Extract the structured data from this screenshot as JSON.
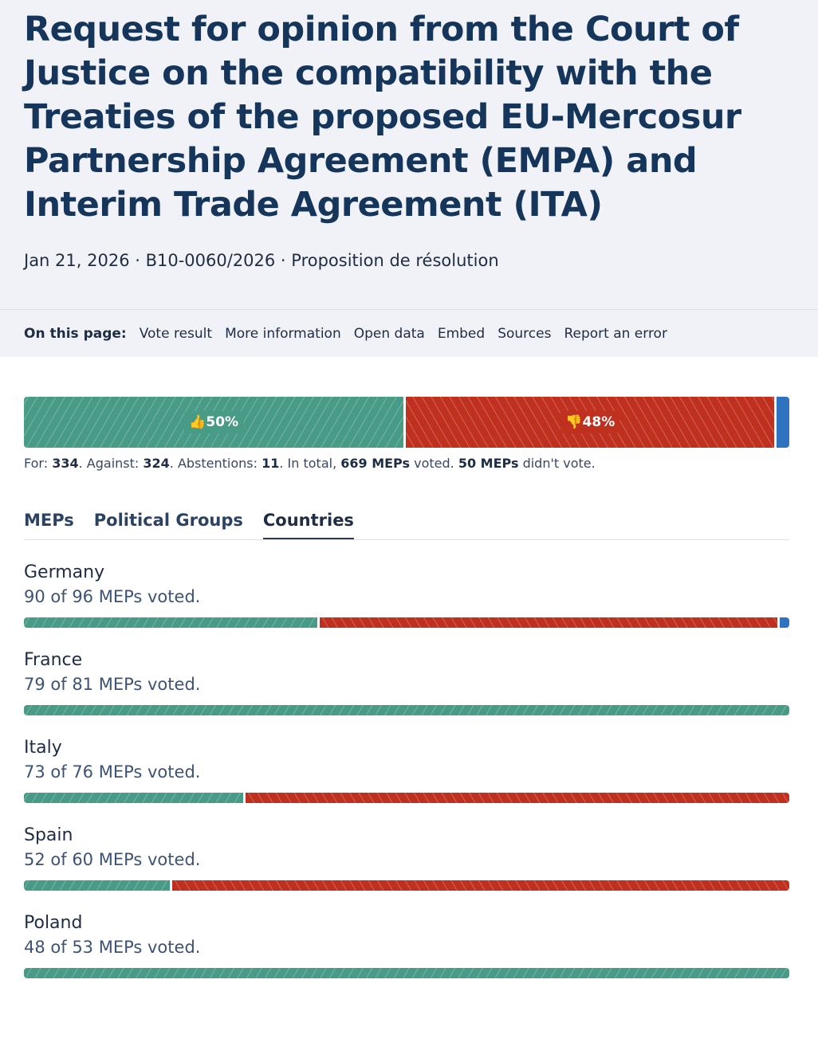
{
  "header": {
    "title": "Request for opinion from the Court of Justice on the compatibility with the Treaties of the proposed EU-Mercosur Partnership Agreement (EMPA) and Interim Trade Agreement (ITA)",
    "meta": "Jan 21, 2026 · B10-0060/2026 · Proposition de résolution"
  },
  "nav": {
    "label": "On this page:",
    "links": [
      "Vote result",
      "More information",
      "Open data",
      "Embed",
      "Sources",
      "Report an error"
    ]
  },
  "result": {
    "for_pct": "50%",
    "against_pct": "48%",
    "for": 334,
    "against": 324,
    "abstentions": 11,
    "total": 669,
    "not_voted": 50,
    "summary": {
      "for_label": "For: ",
      "for": "334",
      "against_label": ". Against: ",
      "against": "324",
      "abst_label": ". Abstentions: ",
      "abst": "11",
      "total_label": ". In total, ",
      "total": "669 MEPs",
      "voted_label": " voted. ",
      "not_voted": "50 MEPs",
      "not_voted_label": " didn't vote."
    }
  },
  "colors": {
    "for": "#489c87",
    "against": "#c0301f",
    "abstention": "#2f72c0"
  },
  "tabs": [
    "MEPs",
    "Political Groups",
    "Countries"
  ],
  "active_tab": "Countries",
  "countries": [
    {
      "name": "Germany",
      "voted": "90 of 96 MEPs voted.",
      "shares": {
        "for": 38.6,
        "against": 60.1,
        "abstention": 1.3
      }
    },
    {
      "name": "France",
      "voted": "79 of 81 MEPs voted.",
      "shares": {
        "for": 100,
        "against": 0,
        "abstention": 0
      }
    },
    {
      "name": "Italy",
      "voted": "73 of 76 MEPs voted.",
      "shares": {
        "for": 28.7,
        "against": 71.3,
        "abstention": 0
      }
    },
    {
      "name": "Spain",
      "voted": "52 of 60 MEPs voted.",
      "shares": {
        "for": 19.1,
        "against": 80.9,
        "abstention": 0
      }
    },
    {
      "name": "Poland",
      "voted": "48 of 53 MEPs voted.",
      "shares": {
        "for": 100,
        "against": 0,
        "abstention": 0
      }
    }
  ]
}
